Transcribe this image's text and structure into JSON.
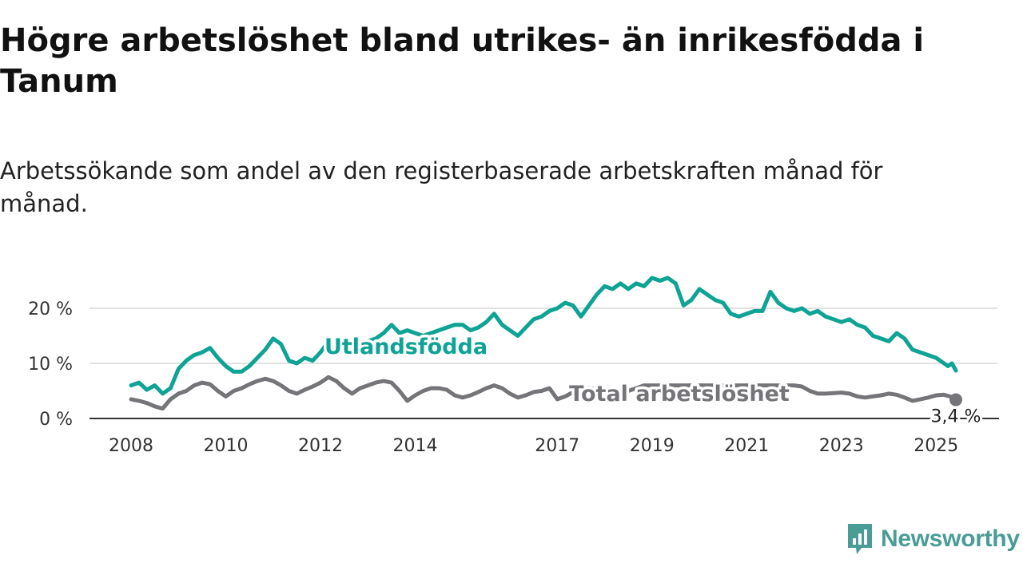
{
  "title": "Högre arbetslöshet bland utrikes- än inrikesfödda i Tanum",
  "subtitle": "Arbetssökande som andel av den registerbaserade arbetskraften månad för månad.",
  "logo": {
    "text": "Newsworthy",
    "icon": "newsworthy-logo-icon",
    "color": "#4a9c96"
  },
  "colors": {
    "utlandsfodda": "#0ea394",
    "total": "#757478",
    "grid": "#d8d8d8",
    "axis": "#333333"
  },
  "chart_data": {
    "type": "line",
    "xlabel": "",
    "ylabel": "",
    "x_range": [
      "2008-01",
      "2025-06"
    ],
    "ylim": [
      0,
      28
    ],
    "y_ticks": [
      0,
      10,
      20
    ],
    "y_tick_labels": [
      "0 %",
      "10 %",
      "20 %"
    ],
    "x_ticks": [
      "2008",
      "2010",
      "2012",
      "2014",
      "2017",
      "2019",
      "2021",
      "2023",
      "2025"
    ],
    "grid": true,
    "legend": "direct labels",
    "end_label": "3,4 %",
    "series": [
      {
        "name": "Utlandsfödda",
        "color": "#0ea394",
        "points": [
          [
            "2008-01",
            6.0
          ],
          [
            "2008-03",
            6.5
          ],
          [
            "2008-05",
            5.2
          ],
          [
            "2008-07",
            6.0
          ],
          [
            "2008-09",
            4.5
          ],
          [
            "2008-11",
            5.5
          ],
          [
            "2009-01",
            9.0
          ],
          [
            "2009-03",
            10.5
          ],
          [
            "2009-05",
            11.5
          ],
          [
            "2009-07",
            12.0
          ],
          [
            "2009-09",
            12.8
          ],
          [
            "2009-11",
            11.0
          ],
          [
            "2010-01",
            9.5
          ],
          [
            "2010-03",
            8.5
          ],
          [
            "2010-05",
            8.5
          ],
          [
            "2010-07",
            9.5
          ],
          [
            "2010-09",
            11.0
          ],
          [
            "2010-11",
            12.5
          ],
          [
            "2011-01",
            14.5
          ],
          [
            "2011-03",
            13.5
          ],
          [
            "2011-05",
            10.5
          ],
          [
            "2011-07",
            10.0
          ],
          [
            "2011-09",
            11.0
          ],
          [
            "2011-11",
            10.5
          ],
          [
            "2012-01",
            12.0
          ],
          [
            "2012-03",
            14.0
          ],
          [
            "2012-05",
            13.5
          ],
          [
            "2012-07",
            12.8
          ],
          [
            "2012-09",
            13.5
          ],
          [
            "2012-11",
            13.0
          ],
          [
            "2013-01",
            14.0
          ],
          [
            "2013-03",
            14.5
          ],
          [
            "2013-05",
            15.5
          ],
          [
            "2013-07",
            17.0
          ],
          [
            "2013-09",
            15.5
          ],
          [
            "2013-11",
            16.0
          ],
          [
            "2014-01",
            15.5
          ],
          [
            "2014-03",
            15.0
          ],
          [
            "2014-05",
            15.5
          ],
          [
            "2014-07",
            16.0
          ],
          [
            "2014-09",
            16.5
          ],
          [
            "2014-11",
            17.0
          ],
          [
            "2015-01",
            17.0
          ],
          [
            "2015-03",
            16.0
          ],
          [
            "2015-05",
            16.5
          ],
          [
            "2015-07",
            17.5
          ],
          [
            "2015-09",
            19.0
          ],
          [
            "2015-11",
            17.0
          ],
          [
            "2016-01",
            16.0
          ],
          [
            "2016-03",
            15.0
          ],
          [
            "2016-05",
            16.5
          ],
          [
            "2016-07",
            18.0
          ],
          [
            "2016-09",
            18.5
          ],
          [
            "2016-11",
            19.5
          ],
          [
            "2017-01",
            20.0
          ],
          [
            "2017-03",
            21.0
          ],
          [
            "2017-05",
            20.5
          ],
          [
            "2017-07",
            18.5
          ],
          [
            "2017-09",
            20.5
          ],
          [
            "2017-11",
            22.5
          ],
          [
            "2018-01",
            24.0
          ],
          [
            "2018-03",
            23.5
          ],
          [
            "2018-05",
            24.5
          ],
          [
            "2018-07",
            23.5
          ],
          [
            "2018-09",
            24.5
          ],
          [
            "2018-11",
            24.0
          ],
          [
            "2019-01",
            25.5
          ],
          [
            "2019-03",
            25.0
          ],
          [
            "2019-05",
            25.5
          ],
          [
            "2019-07",
            24.5
          ],
          [
            "2019-09",
            20.5
          ],
          [
            "2019-11",
            21.5
          ],
          [
            "2020-01",
            23.5
          ],
          [
            "2020-03",
            22.5
          ],
          [
            "2020-05",
            21.5
          ],
          [
            "2020-07",
            21.0
          ],
          [
            "2020-09",
            19.0
          ],
          [
            "2020-11",
            18.5
          ],
          [
            "2021-01",
            19.0
          ],
          [
            "2021-03",
            19.5
          ],
          [
            "2021-05",
            19.5
          ],
          [
            "2021-07",
            23.0
          ],
          [
            "2021-09",
            21.0
          ],
          [
            "2021-11",
            20.0
          ],
          [
            "2022-01",
            19.5
          ],
          [
            "2022-03",
            20.0
          ],
          [
            "2022-05",
            19.0
          ],
          [
            "2022-07",
            19.5
          ],
          [
            "2022-09",
            18.5
          ],
          [
            "2022-11",
            18.0
          ],
          [
            "2023-01",
            17.5
          ],
          [
            "2023-03",
            18.0
          ],
          [
            "2023-05",
            17.0
          ],
          [
            "2023-07",
            16.5
          ],
          [
            "2023-09",
            15.0
          ],
          [
            "2023-11",
            14.5
          ],
          [
            "2024-01",
            14.0
          ],
          [
            "2024-03",
            15.5
          ],
          [
            "2024-05",
            14.5
          ],
          [
            "2024-07",
            12.5
          ],
          [
            "2024-09",
            12.0
          ],
          [
            "2024-11",
            11.5
          ],
          [
            "2025-01",
            11.0
          ],
          [
            "2025-03",
            10.0
          ],
          [
            "2025-04",
            9.5
          ],
          [
            "2025-05",
            10.0
          ],
          [
            "2025-06",
            8.7
          ]
        ]
      },
      {
        "name": "Total arbetslöshet",
        "color": "#757478",
        "points": [
          [
            "2008-01",
            3.5
          ],
          [
            "2008-03",
            3.2
          ],
          [
            "2008-05",
            2.8
          ],
          [
            "2008-07",
            2.2
          ],
          [
            "2008-09",
            1.8
          ],
          [
            "2008-11",
            3.5
          ],
          [
            "2009-01",
            4.5
          ],
          [
            "2009-03",
            5.0
          ],
          [
            "2009-05",
            6.0
          ],
          [
            "2009-07",
            6.5
          ],
          [
            "2009-09",
            6.2
          ],
          [
            "2009-11",
            5.0
          ],
          [
            "2010-01",
            4.0
          ],
          [
            "2010-03",
            5.0
          ],
          [
            "2010-05",
            5.5
          ],
          [
            "2010-07",
            6.2
          ],
          [
            "2010-09",
            6.8
          ],
          [
            "2010-11",
            7.2
          ],
          [
            "2011-01",
            6.8
          ],
          [
            "2011-03",
            6.0
          ],
          [
            "2011-05",
            5.0
          ],
          [
            "2011-07",
            4.5
          ],
          [
            "2011-09",
            5.2
          ],
          [
            "2011-11",
            5.8
          ],
          [
            "2012-01",
            6.5
          ],
          [
            "2012-03",
            7.5
          ],
          [
            "2012-05",
            6.8
          ],
          [
            "2012-07",
            5.5
          ],
          [
            "2012-09",
            4.5
          ],
          [
            "2012-11",
            5.5
          ],
          [
            "2013-01",
            6.0
          ],
          [
            "2013-03",
            6.5
          ],
          [
            "2013-05",
            6.8
          ],
          [
            "2013-07",
            6.5
          ],
          [
            "2013-09",
            5.0
          ],
          [
            "2013-11",
            3.2
          ],
          [
            "2014-01",
            4.2
          ],
          [
            "2014-03",
            5.0
          ],
          [
            "2014-05",
            5.5
          ],
          [
            "2014-07",
            5.5
          ],
          [
            "2014-09",
            5.2
          ],
          [
            "2014-11",
            4.2
          ],
          [
            "2015-01",
            3.8
          ],
          [
            "2015-03",
            4.2
          ],
          [
            "2015-05",
            4.8
          ],
          [
            "2015-07",
            5.5
          ],
          [
            "2015-09",
            6.0
          ],
          [
            "2015-11",
            5.5
          ],
          [
            "2016-01",
            4.5
          ],
          [
            "2016-03",
            3.8
          ],
          [
            "2016-05",
            4.2
          ],
          [
            "2016-07",
            4.8
          ],
          [
            "2016-09",
            5.0
          ],
          [
            "2016-11",
            5.5
          ],
          [
            "2017-01",
            3.5
          ],
          [
            "2017-03",
            4.0
          ],
          [
            "2017-05",
            4.8
          ],
          [
            "2017-07",
            5.2
          ],
          [
            "2017-09",
            5.5
          ],
          [
            "2017-11",
            5.2
          ],
          [
            "2018-01",
            4.8
          ],
          [
            "2018-03",
            4.5
          ],
          [
            "2018-05",
            4.5
          ],
          [
            "2018-07",
            5.0
          ],
          [
            "2018-09",
            5.5
          ],
          [
            "2018-11",
            6.0
          ],
          [
            "2022-01",
            6.0
          ],
          [
            "2022-03",
            5.8
          ],
          [
            "2022-05",
            5.0
          ],
          [
            "2022-07",
            4.5
          ],
          [
            "2022-09",
            4.5
          ],
          [
            "2022-11",
            4.6
          ],
          [
            "2023-01",
            4.7
          ],
          [
            "2023-03",
            4.5
          ],
          [
            "2023-05",
            4.0
          ],
          [
            "2023-07",
            3.8
          ],
          [
            "2023-09",
            4.0
          ],
          [
            "2023-11",
            4.2
          ],
          [
            "2024-01",
            4.5
          ],
          [
            "2024-03",
            4.3
          ],
          [
            "2024-05",
            3.8
          ],
          [
            "2024-07",
            3.2
          ],
          [
            "2024-09",
            3.5
          ],
          [
            "2024-11",
            3.8
          ],
          [
            "2025-01",
            4.2
          ],
          [
            "2025-03",
            4.3
          ],
          [
            "2025-05",
            3.9
          ],
          [
            "2025-06",
            3.4
          ]
        ]
      }
    ]
  }
}
